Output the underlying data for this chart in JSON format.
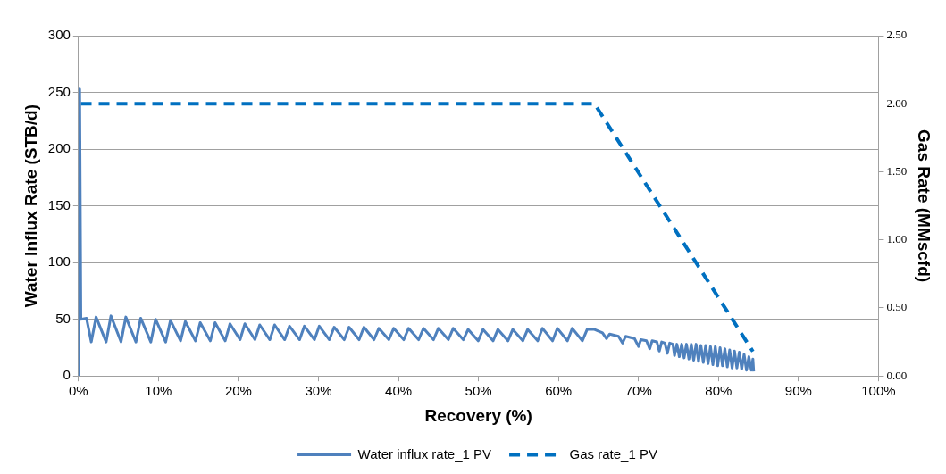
{
  "chart_data": {
    "type": "line",
    "xlabel": "Recovery (%)",
    "ylabel": "Water Influx Rate (STB/d)",
    "y2label": "Gas Rate (MMscfd)",
    "xlim": [
      0,
      100
    ],
    "xticks": [
      {
        "value": 0,
        "label": "0%"
      },
      {
        "value": 10,
        "label": "10%"
      },
      {
        "value": 20,
        "label": "20%"
      },
      {
        "value": 30,
        "label": "30%"
      },
      {
        "value": 40,
        "label": "40%"
      },
      {
        "value": 50,
        "label": "50%"
      },
      {
        "value": 60,
        "label": "60%"
      },
      {
        "value": 70,
        "label": "70%"
      },
      {
        "value": 80,
        "label": "80%"
      },
      {
        "value": 90,
        "label": "90%"
      },
      {
        "value": 100,
        "label": "100%"
      }
    ],
    "ylim": [
      0,
      300
    ],
    "yticks": [
      0,
      50,
      100,
      150,
      200,
      250,
      300
    ],
    "y2lim": [
      0,
      2.5
    ],
    "y2ticks": [
      {
        "value": 0,
        "label": "0.00"
      },
      {
        "value": 0.5,
        "label": "0.50"
      },
      {
        "value": 1,
        "label": "1.00"
      },
      {
        "value": 1.5,
        "label": "1.50"
      },
      {
        "value": 2,
        "label": "2.00"
      },
      {
        "value": 2.5,
        "label": "2.50"
      }
    ],
    "grid": "y",
    "legend": "bottom",
    "series": [
      {
        "name": "Water influx rate_1 PV",
        "type": "line",
        "line_style": "solid",
        "color": "#4f81bd",
        "x": [
          0,
          0.15,
          0.3,
          1.0,
          1.6,
          2.2,
          3.46,
          4.06,
          5.32,
          5.92,
          7.18,
          7.78,
          9.04,
          9.64,
          10.9,
          11.5,
          12.76,
          13.36,
          14.62,
          15.22,
          16.48,
          17.08,
          18.34,
          18.94,
          20.2,
          20.8,
          22.06,
          22.66,
          23.92,
          24.52,
          25.78,
          26.38,
          27.64,
          28.24,
          29.5,
          30.1,
          31.36,
          31.96,
          33.22,
          33.82,
          35.08,
          35.68,
          36.94,
          37.54,
          38.8,
          39.4,
          40.66,
          41.26,
          42.52,
          43.12,
          44.38,
          44.98,
          46.24,
          46.84,
          48.1,
          48.7,
          49.96,
          50.56,
          51.82,
          52.42,
          53.68,
          54.28,
          55.54,
          56.14,
          57.4,
          58.0,
          59.26,
          59.86,
          61.12,
          61.72,
          62.98,
          63.58,
          64.5,
          65.5,
          66,
          66.4,
          67.5,
          68,
          68.4,
          69.5,
          70,
          70.3,
          71,
          71.4,
          71.7,
          72.3,
          72.6,
          72.9,
          73.3,
          73.6,
          73.9,
          74.3,
          74.5,
          74.8,
          75.1,
          75.4,
          75.7,
          76,
          76.3,
          76.6,
          76.9,
          77.2,
          77.5,
          77.8,
          78.1,
          78.4,
          78.7,
          79,
          79.3,
          79.6,
          79.9,
          80.2,
          80.5,
          80.8,
          81.1,
          81.4,
          81.7,
          82,
          82.3,
          82.6,
          82.9,
          83.2,
          83.5,
          83.8,
          84.1,
          84.3,
          84.4
        ],
        "values": [
          0,
          253,
          50,
          51,
          30,
          52,
          30,
          53,
          30,
          52,
          30,
          51,
          30,
          50,
          30,
          49,
          31,
          48,
          31,
          47,
          31,
          47,
          31,
          46,
          32,
          46,
          32,
          45,
          32,
          45,
          32,
          44,
          32,
          44,
          32,
          44,
          32,
          43,
          32,
          43,
          32,
          43,
          32,
          42,
          32,
          42,
          32,
          42,
          32,
          42,
          32,
          42,
          32,
          42,
          32,
          41,
          31,
          41,
          31,
          41,
          31,
          41,
          31,
          41,
          31,
          42,
          31,
          42,
          31,
          42,
          31,
          41,
          41,
          38,
          33,
          37,
          35,
          29,
          35,
          33,
          26,
          32,
          31,
          24,
          31,
          30,
          22,
          30,
          29,
          20,
          29,
          28,
          18,
          28,
          17,
          28,
          16,
          28,
          15,
          28,
          14,
          28,
          13,
          27,
          12,
          27,
          11,
          26,
          10,
          26,
          9,
          25,
          9,
          24,
          8,
          23,
          7,
          22,
          7,
          21,
          6,
          19,
          5,
          17,
          5,
          15,
          4
        ]
      },
      {
        "name": "Gas rate_1 PV",
        "type": "line",
        "axis": "y2",
        "line_style": "dashed",
        "color": "#0070c0",
        "x": [
          0.3,
          64.5,
          84.3
        ],
        "values": [
          2.0,
          2.0,
          0.18
        ]
      }
    ]
  }
}
